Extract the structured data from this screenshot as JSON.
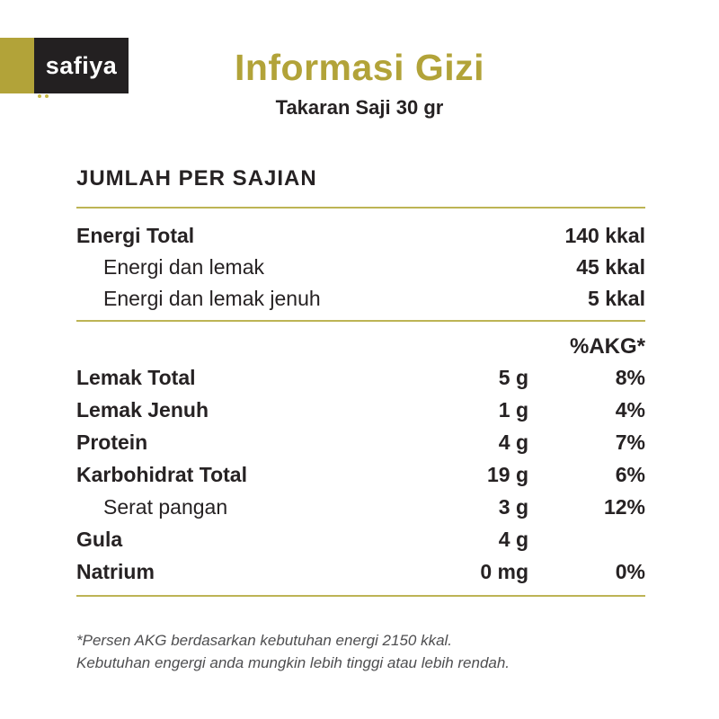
{
  "logo": {
    "brand": "safiya"
  },
  "header": {
    "title": "Informasi Gizi",
    "subtitle": "Takaran Saji 30 gr"
  },
  "section": {
    "heading": "JUMLAH PER SAJIAN",
    "akg_header": "%AKG*"
  },
  "energy_rows": [
    {
      "label": "Energi Total",
      "value": "140 kkal"
    },
    {
      "label": "Energi dan lemak",
      "value": "45 kkal"
    },
    {
      "label": "Energi dan lemak jenuh",
      "value": "5 kkal"
    }
  ],
  "nutrient_rows": [
    {
      "label": "Lemak Total",
      "amount": "5 g",
      "pct": "8%"
    },
    {
      "label": "Lemak Jenuh",
      "amount": "1 g",
      "pct": "4%"
    },
    {
      "label": "Protein",
      "amount": "4 g",
      "pct": "7%"
    },
    {
      "label": "Karbohidrat Total",
      "amount": "19 g",
      "pct": "6%"
    },
    {
      "label": "Serat pangan",
      "amount": "3 g",
      "pct": "12%"
    },
    {
      "label": "Gula",
      "amount": "4 g",
      "pct": ""
    },
    {
      "label": "Natrium",
      "amount": "0 mg",
      "pct": "0%"
    }
  ],
  "footnote": {
    "line1": "*Persen AKG berdasarkan kebutuhan energi 2150 kkal.",
    "line2": "Kebutuhan engergi anda mungkin lebih tinggi atau lebih rendah."
  },
  "colors": {
    "accent_olive": "#b2a339",
    "rule_olive": "#bdb455",
    "logo_box_black": "#232021",
    "text_dark": "#262223",
    "footnote_gray": "#4e4e50"
  }
}
